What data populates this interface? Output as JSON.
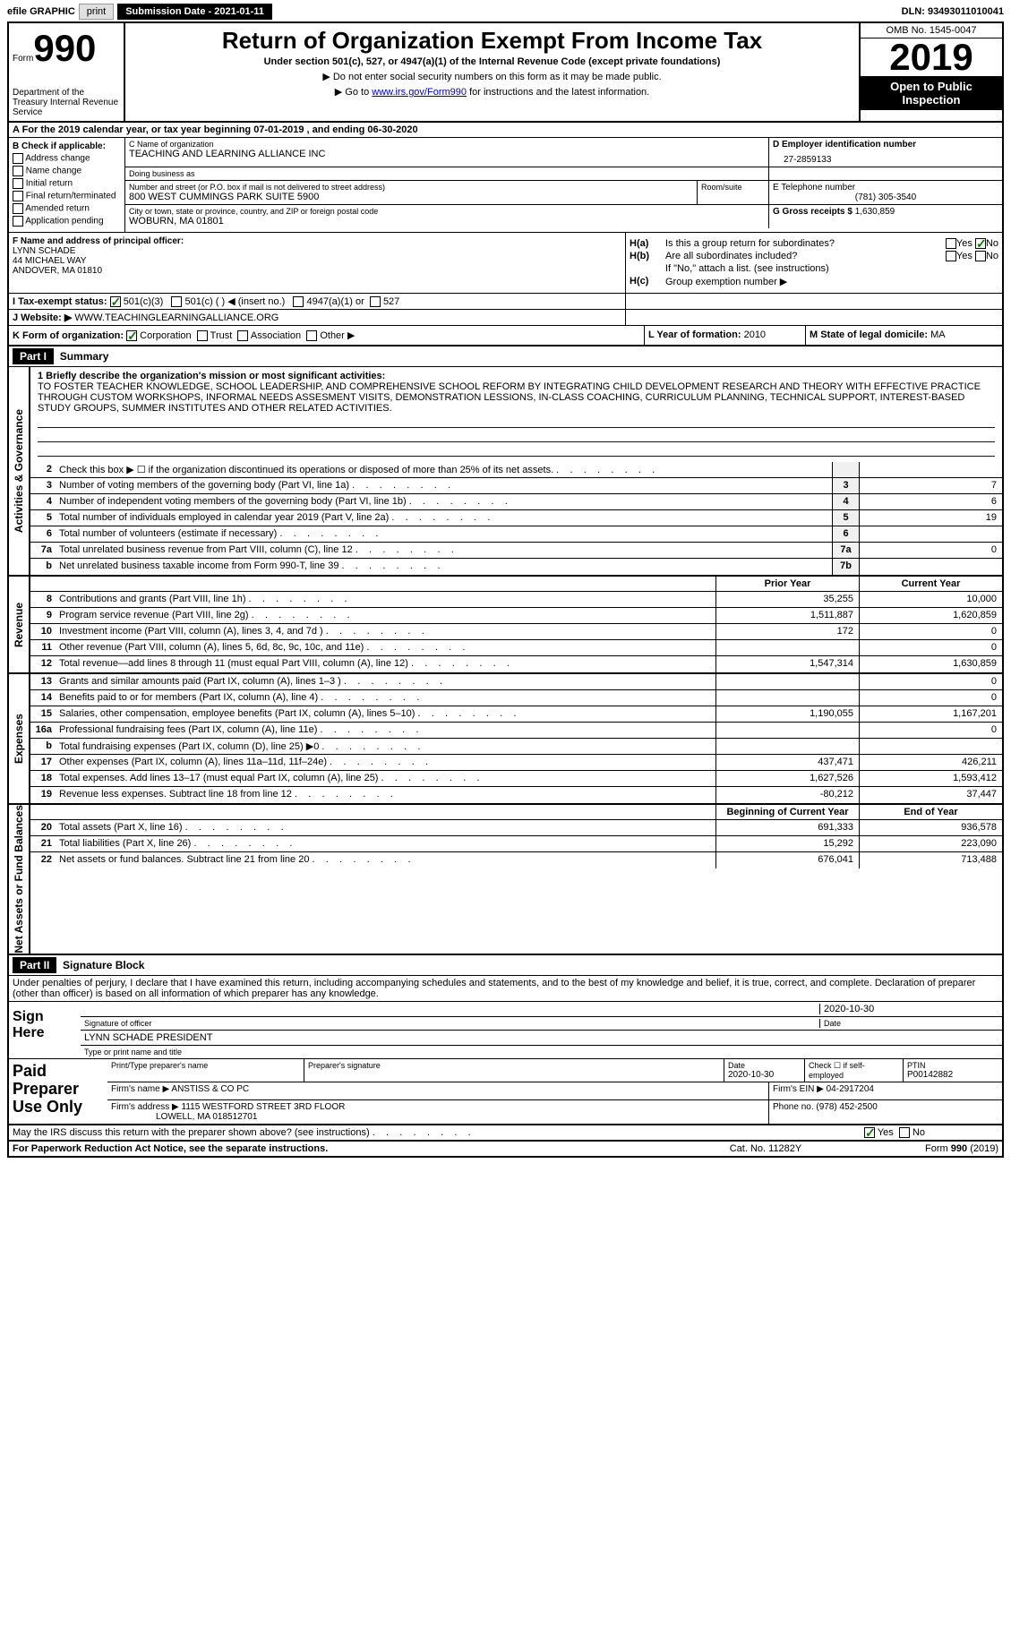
{
  "topbar": {
    "efile": "efile GRAPHIC",
    "print": "print",
    "sub_date": "Submission Date - 2021-01-11",
    "dln": "DLN: 93493011010041"
  },
  "header": {
    "form_prefix": "Form",
    "form_num": "990",
    "dept": "Department of the Treasury Internal Revenue Service",
    "title": "Return of Organization Exempt From Income Tax",
    "subtitle": "Under section 501(c), 527, or 4947(a)(1) of the Internal Revenue Code (except private foundations)",
    "note1": "▶ Do not enter social security numbers on this form as it may be made public.",
    "note2_pre": "▶ Go to ",
    "note2_link": "www.irs.gov/Form990",
    "note2_post": " for instructions and the latest information.",
    "omb": "OMB No. 1545-0047",
    "year": "2019",
    "open": "Open to Public Inspection"
  },
  "row_a": "A For the 2019 calendar year, or tax year beginning 07-01-2019    , and ending 06-30-2020",
  "section_b": {
    "title": "B Check if applicable:",
    "items": [
      "Address change",
      "Name change",
      "Initial return",
      "Final return/terminated",
      "Amended return",
      "Application pending"
    ]
  },
  "section_c": {
    "name_label": "C Name of organization",
    "name": "TEACHING AND LEARNING ALLIANCE INC",
    "dba_label": "Doing business as",
    "dba": "",
    "addr_label": "Number and street (or P.O. box if mail is not delivered to street address)",
    "addr": "800 WEST CUMMINGS PARK SUITE 5900",
    "room_label": "Room/suite",
    "city_label": "City or town, state or province, country, and ZIP or foreign postal code",
    "city": "WOBURN, MA  01801"
  },
  "section_d": {
    "label": "D Employer identification number",
    "value": "27-2859133"
  },
  "section_e": {
    "label": "E Telephone number",
    "value": "(781) 305-3540"
  },
  "section_g": {
    "label": "G Gross receipts $",
    "value": "1,630,859"
  },
  "section_f": {
    "label": "F  Name and address of principal officer:",
    "name": "LYNN SCHADE",
    "addr1": "44 MICHAEL WAY",
    "addr2": "ANDOVER, MA  01810"
  },
  "section_h": {
    "ha_label": "H(a)",
    "ha_text": "Is this a group return for subordinates?",
    "ha_no": true,
    "hb_label": "H(b)",
    "hb_text": "Are all subordinates included?",
    "hb_note": "If \"No,\" attach a list. (see instructions)",
    "hc_label": "H(c)",
    "hc_text": "Group exemption number ▶"
  },
  "row_i": {
    "label": "I   Tax-exempt status:",
    "opt1": "501(c)(3)",
    "opt2": "501(c) (   ) ◀ (insert no.)",
    "opt3": "4947(a)(1) or",
    "opt4": "527"
  },
  "row_j": {
    "label": "J   Website: ▶",
    "value": "WWW.TEACHINGLEARNINGALLIANCE.ORG"
  },
  "row_k": {
    "label": "K Form of organization:",
    "opts": [
      "Corporation",
      "Trust",
      "Association",
      "Other ▶"
    ]
  },
  "row_l": {
    "label": "L Year of formation:",
    "value": "2010"
  },
  "row_m": {
    "label": "M State of legal domicile:",
    "value": "MA"
  },
  "part1": {
    "header": "Part I",
    "title": "Summary",
    "mission_label": "1   Briefly describe the organization's mission or most significant activities:",
    "mission": "TO FOSTER TEACHER KNOWLEDGE, SCHOOL LEADERSHIP, AND COMPREHENSIVE SCHOOL REFORM BY INTEGRATING CHILD DEVELOPMENT RESEARCH AND THEORY WITH EFFECTIVE PRACTICE THROUGH CUSTOM WORKSHOPS, INFORMAL NEEDS ASSESMENT VISITS, DEMONSTRATION LESSIONS, IN-CLASS COACHING, CURRICULUM PLANNING, TECHNICAL SUPPORT, INTEREST-BASED STUDY GROUPS, SUMMER INSTITUTES AND OTHER RELATED ACTIVITIES."
  },
  "gov_rows": [
    {
      "n": "2",
      "t": "Check this box ▶ ☐ if the organization discontinued its operations or disposed of more than 25% of its net assets.",
      "box": "",
      "v": ""
    },
    {
      "n": "3",
      "t": "Number of voting members of the governing body (Part VI, line 1a)",
      "box": "3",
      "v": "7"
    },
    {
      "n": "4",
      "t": "Number of independent voting members of the governing body (Part VI, line 1b)",
      "box": "4",
      "v": "6"
    },
    {
      "n": "5",
      "t": "Total number of individuals employed in calendar year 2019 (Part V, line 2a)",
      "box": "5",
      "v": "19"
    },
    {
      "n": "6",
      "t": "Total number of volunteers (estimate if necessary)",
      "box": "6",
      "v": ""
    },
    {
      "n": "7a",
      "t": "Total unrelated business revenue from Part VIII, column (C), line 12",
      "box": "7a",
      "v": "0"
    },
    {
      "n": "b",
      "t": "Net unrelated business taxable income from Form 990-T, line 39",
      "box": "7b",
      "v": ""
    }
  ],
  "pycy": {
    "py": "Prior Year",
    "cy": "Current Year"
  },
  "rev_rows": [
    {
      "n": "8",
      "t": "Contributions and grants (Part VIII, line 1h)",
      "py": "35,255",
      "cy": "10,000"
    },
    {
      "n": "9",
      "t": "Program service revenue (Part VIII, line 2g)",
      "py": "1,511,887",
      "cy": "1,620,859"
    },
    {
      "n": "10",
      "t": "Investment income (Part VIII, column (A), lines 3, 4, and 7d )",
      "py": "172",
      "cy": "0"
    },
    {
      "n": "11",
      "t": "Other revenue (Part VIII, column (A), lines 5, 6d, 8c, 9c, 10c, and 11e)",
      "py": "",
      "cy": "0"
    },
    {
      "n": "12",
      "t": "Total revenue—add lines 8 through 11 (must equal Part VIII, column (A), line 12)",
      "py": "1,547,314",
      "cy": "1,630,859"
    }
  ],
  "exp_rows": [
    {
      "n": "13",
      "t": "Grants and similar amounts paid (Part IX, column (A), lines 1–3 )",
      "py": "",
      "cy": "0"
    },
    {
      "n": "14",
      "t": "Benefits paid to or for members (Part IX, column (A), line 4)",
      "py": "",
      "cy": "0"
    },
    {
      "n": "15",
      "t": "Salaries, other compensation, employee benefits (Part IX, column (A), lines 5–10)",
      "py": "1,190,055",
      "cy": "1,167,201"
    },
    {
      "n": "16a",
      "t": "Professional fundraising fees (Part IX, column (A), line 11e)",
      "py": "",
      "cy": "0"
    },
    {
      "n": "b",
      "t": "Total fundraising expenses (Part IX, column (D), line 25) ▶0",
      "py": "",
      "cy": ""
    },
    {
      "n": "17",
      "t": "Other expenses (Part IX, column (A), lines 11a–11d, 11f–24e)",
      "py": "437,471",
      "cy": "426,211"
    },
    {
      "n": "18",
      "t": "Total expenses. Add lines 13–17 (must equal Part IX, column (A), line 25)",
      "py": "1,627,526",
      "cy": "1,593,412"
    },
    {
      "n": "19",
      "t": "Revenue less expenses. Subtract line 18 from line 12",
      "py": "-80,212",
      "cy": "37,447"
    }
  ],
  "bal_header": {
    "py": "Beginning of Current Year",
    "cy": "End of Year"
  },
  "bal_rows": [
    {
      "n": "20",
      "t": "Total assets (Part X, line 16)",
      "py": "691,333",
      "cy": "936,578"
    },
    {
      "n": "21",
      "t": "Total liabilities (Part X, line 26)",
      "py": "15,292",
      "cy": "223,090"
    },
    {
      "n": "22",
      "t": "Net assets or fund balances. Subtract line 21 from line 20",
      "py": "676,041",
      "cy": "713,488"
    }
  ],
  "part2": {
    "header": "Part II",
    "title": "Signature Block",
    "declaration": "Under penalties of perjury, I declare that I have examined this return, including accompanying schedules and statements, and to the best of my knowledge and belief, it is true, correct, and complete. Declaration of preparer (other than officer) is based on all information of which preparer has any knowledge."
  },
  "sign": {
    "here": "Sign Here",
    "sig_label": "Signature of officer",
    "date": "2020-10-30",
    "date_label": "Date",
    "name": "LYNN SCHADE PRESIDENT",
    "name_label": "Type or print name and title"
  },
  "paid": {
    "title": "Paid Preparer Use Only",
    "p_label": "Print/Type preparer's name",
    "sig_label": "Preparer's signature",
    "date_label": "Date",
    "date": "2020-10-30",
    "self_label": "Check ☐ if self-employed",
    "ptin_label": "PTIN",
    "ptin": "P00142882",
    "firm_label": "Firm's name    ▶",
    "firm": "ANSTISS & CO PC",
    "ein_label": "Firm's EIN ▶",
    "ein": "04-2917204",
    "addr_label": "Firm's address ▶",
    "addr1": "1115 WESTFORD STREET 3RD FLOOR",
    "addr2": "LOWELL, MA  018512701",
    "phone_label": "Phone no.",
    "phone": "(978) 452-2500"
  },
  "may_irs": "May the IRS discuss this return with the preparer shown above? (see instructions)",
  "footer": {
    "left": "For Paperwork Reduction Act Notice, see the separate instructions.",
    "center": "Cat. No. 11282Y",
    "right": "Form 990 (2019)"
  },
  "side_labels": {
    "gov": "Activities & Governance",
    "rev": "Revenue",
    "exp": "Expenses",
    "bal": "Net Assets or Fund Balances"
  }
}
